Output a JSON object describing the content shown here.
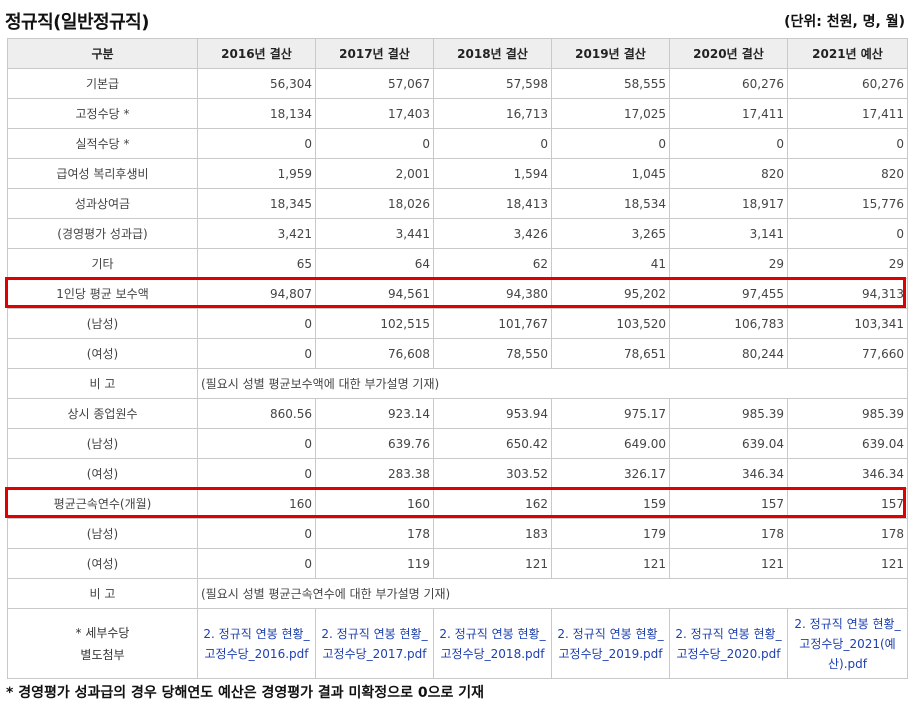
{
  "header": {
    "title": "정규직(일반정규직)",
    "unit": "(단위: 천원, 명, 월)"
  },
  "columns": [
    "구분",
    "2016년 결산",
    "2017년 결산",
    "2018년 결산",
    "2019년 결산",
    "2020년 결산",
    "2021년 예산"
  ],
  "rows": [
    {
      "label": "기본급",
      "values": [
        "56,304",
        "57,067",
        "57,598",
        "58,555",
        "60,276",
        "60,276"
      ]
    },
    {
      "label": "고정수당 *",
      "values": [
        "18,134",
        "17,403",
        "16,713",
        "17,025",
        "17,411",
        "17,411"
      ]
    },
    {
      "label": "실적수당 *",
      "values": [
        "0",
        "0",
        "0",
        "0",
        "0",
        "0"
      ]
    },
    {
      "label": "급여성 복리후생비",
      "values": [
        "1,959",
        "2,001",
        "1,594",
        "1,045",
        "820",
        "820"
      ]
    },
    {
      "label": "성과상여금",
      "values": [
        "18,345",
        "18,026",
        "18,413",
        "18,534",
        "18,917",
        "15,776"
      ]
    },
    {
      "label": "(경영평가 성과급)",
      "values": [
        "3,421",
        "3,441",
        "3,426",
        "3,265",
        "3,141",
        "0"
      ]
    },
    {
      "label": "기타",
      "values": [
        "65",
        "64",
        "62",
        "41",
        "29",
        "29"
      ]
    },
    {
      "label": "1인당 평균 보수액",
      "values": [
        "94,807",
        "94,561",
        "94,380",
        "95,202",
        "97,455",
        "94,313"
      ]
    },
    {
      "label": "(남성)",
      "values": [
        "0",
        "102,515",
        "101,767",
        "103,520",
        "106,783",
        "103,341"
      ]
    },
    {
      "label": "(여성)",
      "values": [
        "0",
        "76,608",
        "78,550",
        "78,651",
        "80,244",
        "77,660"
      ]
    }
  ],
  "note1": {
    "label": "비 고",
    "text": "(필요시 성별 평균보수액에 대한 부가설명 기재)"
  },
  "rows2": [
    {
      "label": "상시 종업원수",
      "values": [
        "860.56",
        "923.14",
        "953.94",
        "975.17",
        "985.39",
        "985.39"
      ]
    },
    {
      "label": "(남성)",
      "values": [
        "0",
        "639.76",
        "650.42",
        "649.00",
        "639.04",
        "639.04"
      ]
    },
    {
      "label": "(여성)",
      "values": [
        "0",
        "283.38",
        "303.52",
        "326.17",
        "346.34",
        "346.34"
      ]
    },
    {
      "label": "평균근속연수(개월)",
      "values": [
        "160",
        "160",
        "162",
        "159",
        "157",
        "157"
      ]
    },
    {
      "label": "(남성)",
      "values": [
        "0",
        "178",
        "183",
        "179",
        "178",
        "178"
      ]
    },
    {
      "label": "(여성)",
      "values": [
        "0",
        "119",
        "121",
        "121",
        "121",
        "121"
      ]
    }
  ],
  "note2": {
    "label": "비 고",
    "text": "(필요시 성별 평균근속연수에 대한 부가설명 기재)"
  },
  "attachments": {
    "label_line1": "* 세부수당",
    "label_line2": "별도첨부",
    "files": [
      "2. 정규직 연봉 현황_고정수당_2016.pdf",
      "2. 정규직 연봉 현황_고정수당_2017.pdf",
      "2. 정규직 연봉 현황_고정수당_2018.pdf",
      "2. 정규직 연봉 현황_고정수당_2019.pdf",
      "2. 정규직 연봉 현황_고정수당_2020.pdf",
      "2. 정규직 연봉 현황_고정수당_2021(예산).pdf"
    ]
  },
  "footnote": "* 경영평가 성과급의 경우 당해연도 예산은 경영평가 결과 미확정으로 0으로 기재",
  "colors": {
    "highlight": "#e00000",
    "header_bg": "#eeeeee",
    "border": "#c9c9c9",
    "link": "#1d3fb0"
  }
}
